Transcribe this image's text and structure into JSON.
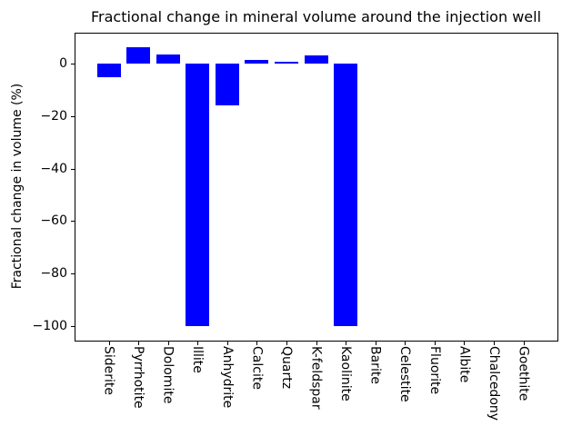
{
  "figure": {
    "background_color": "#ffffff",
    "text_color": "#000000"
  },
  "chart_data": {
    "type": "bar",
    "title": "Fractional change in mineral volume around the injection well",
    "xlabel": "",
    "ylabel": "Fractional change in volume (%)",
    "categories": [
      "Siderite",
      "Pyrrhotite",
      "Dolomite",
      "Illite",
      "Anhydrite",
      "Calcite",
      "Quartz",
      "K-feldspar",
      "Kaolinite",
      "Barite",
      "Celestite",
      "Fluorite",
      "Albite",
      "Chalcedony",
      "Goethite"
    ],
    "values": [
      -5,
      6.2,
      3.4,
      -100,
      -16,
      1.3,
      0.8,
      3.3,
      -100,
      0,
      0,
      0,
      0,
      0,
      0
    ],
    "bar_color": "#0000ff",
    "ylim": [
      -105.6,
      11.8
    ],
    "yticks": [
      0,
      -20,
      -40,
      -60,
      -80,
      -100
    ],
    "ytick_labels": [
      "0",
      "−20",
      "−40",
      "−60",
      "−80",
      "−100"
    ],
    "xtick_label_rotation": -90,
    "grid": false,
    "legend": "none"
  }
}
